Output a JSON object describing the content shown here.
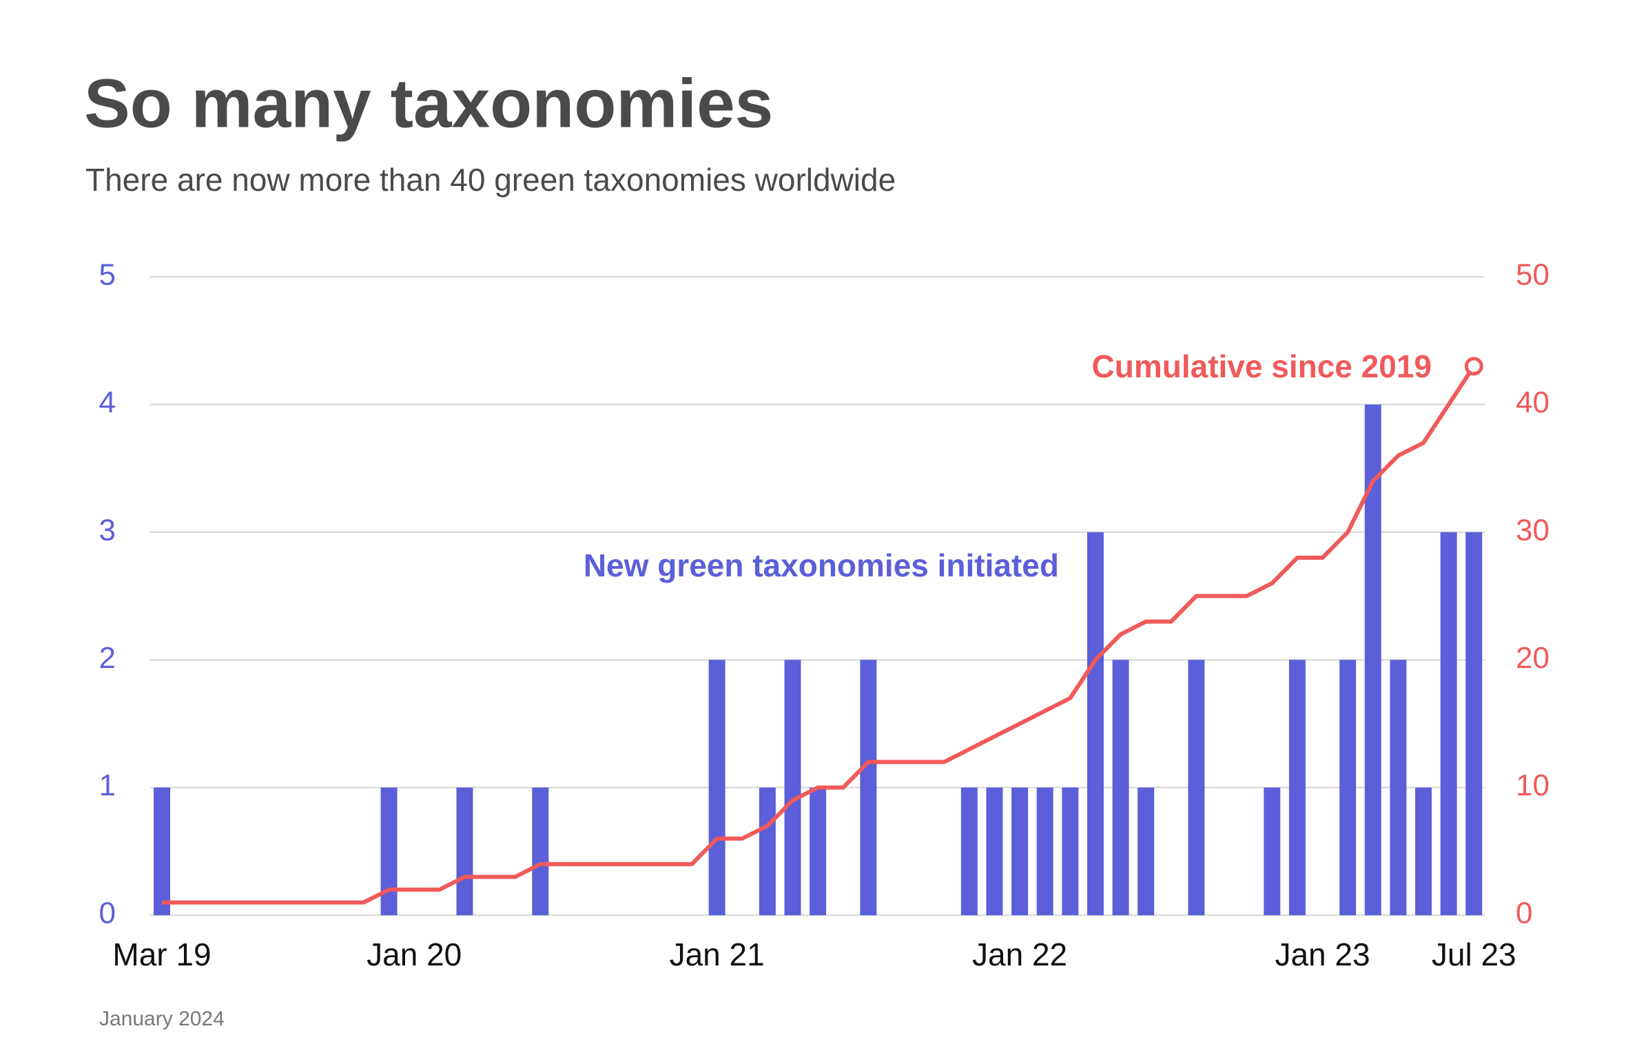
{
  "chart_data": {
    "type": "bar",
    "title": "So many taxonomies",
    "subtitle": "There are now more than 40 green taxonomies worldwide",
    "footnote": "January 2024",
    "categories": [
      "Mar 19",
      null,
      null,
      null,
      null,
      null,
      null,
      null,
      null,
      null,
      "Jan 20",
      null,
      null,
      null,
      null,
      null,
      null,
      null,
      null,
      null,
      null,
      null,
      "Jan 21",
      null,
      null,
      null,
      null,
      null,
      null,
      null,
      null,
      null,
      null,
      null,
      "Jan 22",
      null,
      null,
      null,
      null,
      null,
      null,
      null,
      null,
      null,
      null,
      null,
      "Jan 23",
      null,
      null,
      null,
      null,
      null,
      "Jul 23"
    ],
    "series": [
      {
        "name": "New green taxonomies initiated",
        "type": "bar",
        "color": "#5b5fd9",
        "axis": "y",
        "values": [
          1,
          0,
          0,
          0,
          0,
          0,
          0,
          0,
          0,
          1,
          0,
          0,
          1,
          0,
          0,
          1,
          0,
          0,
          0,
          0,
          0,
          0,
          2,
          0,
          1,
          2,
          1,
          0,
          2,
          0,
          0,
          0,
          1,
          1,
          1,
          1,
          1,
          3,
          2,
          1,
          0,
          2,
          0,
          0,
          1,
          2,
          0,
          2,
          4,
          2,
          1,
          3,
          3
        ]
      },
      {
        "name": "Cumulative since 2019",
        "type": "line",
        "color": "#f05a5a",
        "axis": "y2",
        "values": [
          1,
          1,
          1,
          1,
          1,
          1,
          1,
          1,
          1,
          2,
          2,
          2,
          3,
          3,
          3,
          4,
          4,
          4,
          4,
          4,
          4,
          4,
          6,
          6,
          7,
          9,
          10,
          10,
          12,
          12,
          12,
          12,
          13,
          14,
          15,
          16,
          17,
          20,
          22,
          23,
          23,
          25,
          25,
          25,
          26,
          28,
          28,
          30,
          34,
          36,
          37,
          40,
          43
        ]
      }
    ],
    "ylim": [
      0,
      5
    ],
    "yticks": [
      0,
      1,
      2,
      3,
      4,
      5
    ],
    "y2lim": [
      0,
      50
    ],
    "y2ticks": [
      0,
      10,
      20,
      30,
      40,
      50
    ],
    "grid": true
  }
}
